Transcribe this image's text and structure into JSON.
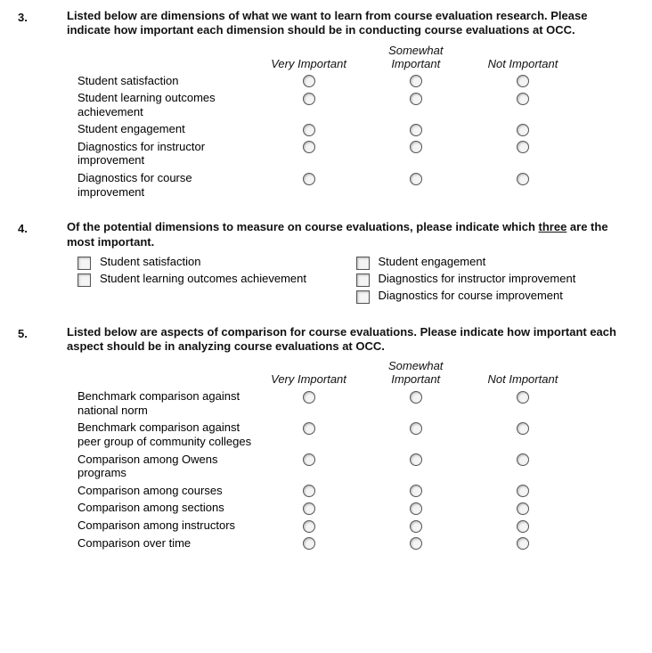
{
  "q3": {
    "number": "3.",
    "prompt": "Listed below are dimensions of what we want to learn from course evaluation research. Please indicate how important each dimension should be in conducting course evaluations at OCC.",
    "columns": [
      "Very Important",
      "Somewhat Important",
      "Not Important"
    ],
    "rows": [
      "Student satisfaction",
      "Student learning outcomes achievement",
      "Student engagement",
      "Diagnostics for instructor improvement",
      "Diagnostics for course improvement"
    ]
  },
  "q4": {
    "number": "4.",
    "prompt_pre": "Of the potential dimensions to measure on course evaluations, please indicate which ",
    "prompt_underline": "three",
    "prompt_post": " are the most important.",
    "left_options": [
      "Student satisfaction",
      "Student learning outcomes achievement"
    ],
    "right_options": [
      "Student engagement",
      "Diagnostics for instructor improvement",
      "Diagnostics for course improvement"
    ]
  },
  "q5": {
    "number": "5.",
    "prompt": "Listed below are aspects of comparison for course evaluations. Please indicate how important each aspect should be in analyzing course evaluations at OCC.",
    "columns": [
      "Very Important",
      "Somewhat Important",
      "Not Important"
    ],
    "rows": [
      "Benchmark comparison against national norm",
      "Benchmark comparison against peer group of community colleges",
      "Comparison among Owens programs",
      "Comparison among courses",
      "Comparison among sections",
      "Comparison among instructors",
      "Comparison over time"
    ]
  }
}
